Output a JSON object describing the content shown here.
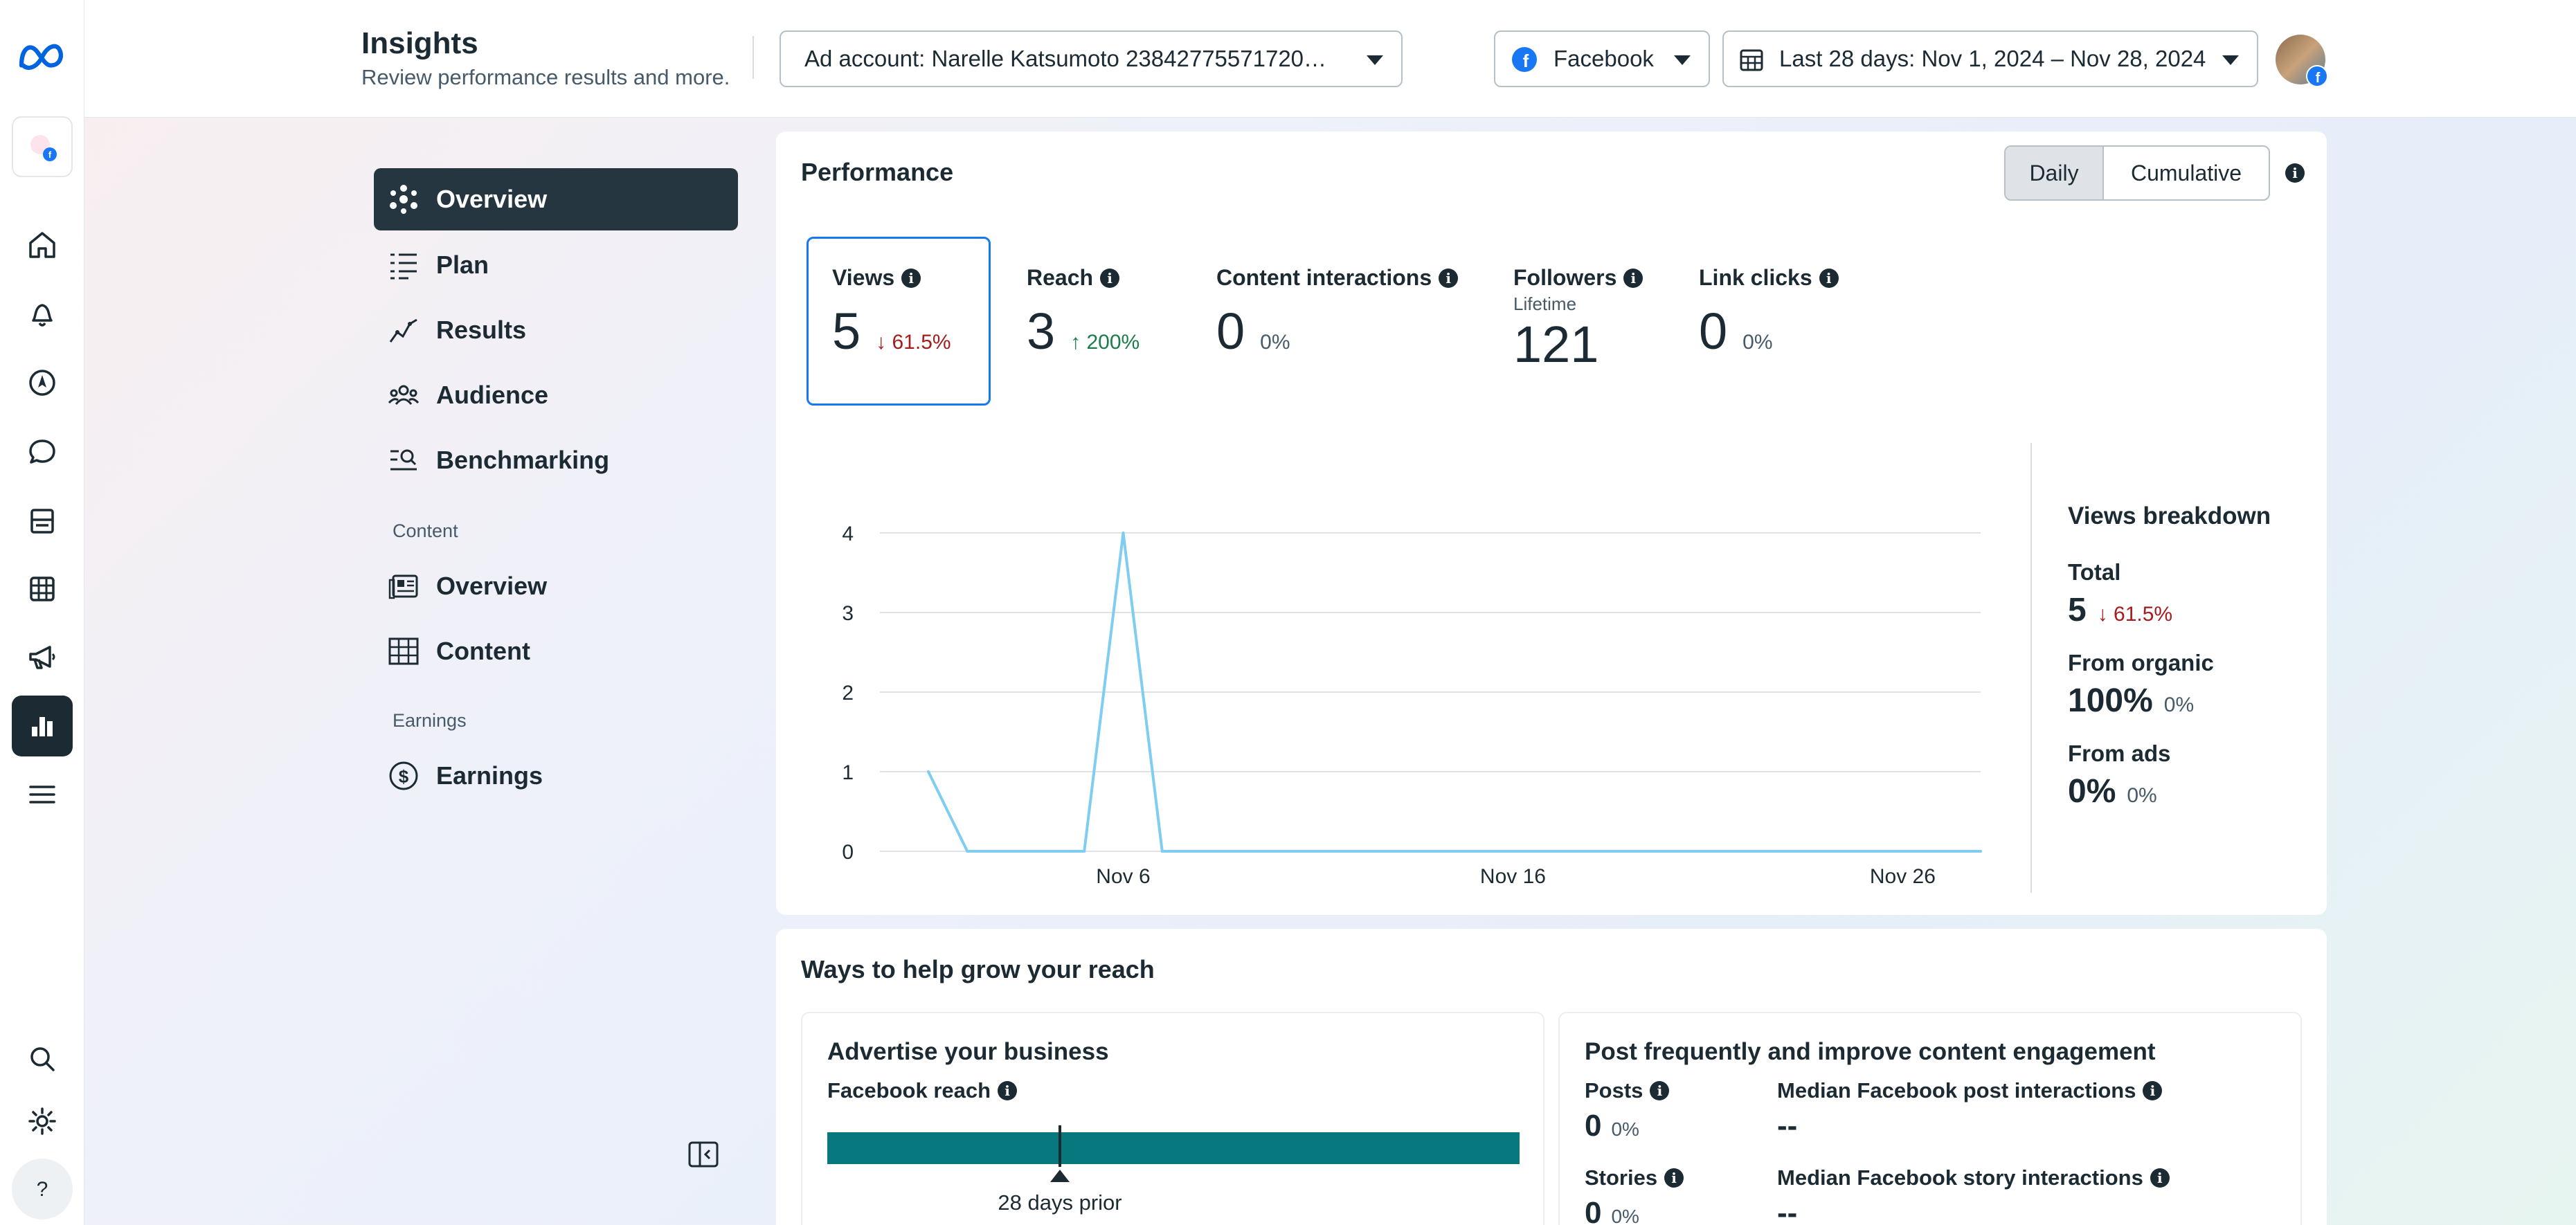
{
  "header": {
    "title": "Insights",
    "subtitle": "Review performance results and more.",
    "ad_account": "Ad account: Narelle Katsumoto 23842775571720…",
    "platform": "Facebook",
    "date_range": "Last 28 days: Nov 1, 2024 – Nov 28, 2024"
  },
  "rail_icons": [
    "meta-logo-icon",
    "page-avatar-icon",
    "home-icon",
    "bell-icon",
    "compass-icon",
    "chat-icon",
    "pages-icon",
    "table-icon",
    "megaphone-icon",
    "bar-chart-icon",
    "menu-icon",
    "search-icon",
    "gear-icon",
    "help-icon"
  ],
  "nav": {
    "items": [
      {
        "label": "Overview",
        "icon": "nodes-icon",
        "active": true
      },
      {
        "label": "Plan",
        "icon": "list-icon"
      },
      {
        "label": "Results",
        "icon": "trend-icon"
      },
      {
        "label": "Audience",
        "icon": "people-icon"
      },
      {
        "label": "Benchmarking",
        "icon": "magnify-lines-icon"
      }
    ],
    "content_heading": "Content",
    "content_items": [
      {
        "label": "Overview",
        "icon": "content-overview-icon"
      },
      {
        "label": "Content",
        "icon": "grid-icon"
      }
    ],
    "earnings_heading": "Earnings",
    "earnings_items": [
      {
        "label": "Earnings",
        "icon": "dollar-icon"
      }
    ]
  },
  "performance": {
    "title": "Performance",
    "toggle_daily": "Daily",
    "toggle_cumulative": "Cumulative",
    "metrics": [
      {
        "label": "Views",
        "value": "5",
        "delta": "61.5%",
        "direction": "down"
      },
      {
        "label": "Reach",
        "value": "3",
        "delta": "200%",
        "direction": "up"
      },
      {
        "label": "Content interactions",
        "value": "0",
        "delta": "0%"
      },
      {
        "label": "Followers",
        "sublabel": "Lifetime",
        "value": "121"
      },
      {
        "label": "Link clicks",
        "value": "0",
        "delta": "0%"
      }
    ],
    "breakdown": {
      "title": "Views breakdown",
      "total_label": "Total",
      "total_value": "5",
      "total_delta": "61.5%",
      "organic_label": "From organic",
      "organic_value": "100%",
      "organic_delta": "0%",
      "ads_label": "From ads",
      "ads_value": "0%",
      "ads_delta": "0%"
    }
  },
  "chart_data": {
    "type": "line",
    "x": [
      "Nov 1",
      "Nov 2",
      "Nov 3",
      "Nov 4",
      "Nov 5",
      "Nov 6",
      "Nov 7",
      "Nov 8",
      "Nov 9",
      "Nov 10",
      "Nov 11",
      "Nov 12",
      "Nov 13",
      "Nov 14",
      "Nov 15",
      "Nov 16",
      "Nov 17",
      "Nov 18",
      "Nov 19",
      "Nov 20",
      "Nov 21",
      "Nov 22",
      "Nov 23",
      "Nov 24",
      "Nov 25",
      "Nov 26",
      "Nov 27",
      "Nov 28"
    ],
    "x_tick_labels": [
      "Nov 6",
      "Nov 16",
      "Nov 26"
    ],
    "y_ticks": [
      0,
      1,
      2,
      3,
      4
    ],
    "ylim": [
      0,
      4
    ],
    "series": [
      {
        "name": "Views",
        "color": "#7fcdf0",
        "values": [
          1,
          0,
          0,
          0,
          0,
          4,
          0,
          0,
          0,
          0,
          0,
          0,
          0,
          0,
          0,
          0,
          0,
          0,
          0,
          0,
          0,
          0,
          0,
          0,
          0,
          0,
          0,
          0
        ]
      }
    ],
    "grid": true,
    "legend": "bottom"
  },
  "grow": {
    "title": "Ways to help grow your reach",
    "advertise": {
      "title": "Advertise your business",
      "reach_label": "Facebook reach",
      "marker_label": "28 days prior"
    },
    "post": {
      "title": "Post frequently and improve content engagement",
      "posts_label": "Posts",
      "posts_value": "0",
      "posts_delta": "0%",
      "median_post_label": "Median Facebook post interactions",
      "median_post_value": "--",
      "stories_label": "Stories",
      "stories_value": "0",
      "stories_delta": "0%",
      "median_story_label": "Median Facebook story interactions",
      "median_story_value": "--"
    }
  },
  "colors": {
    "accent_dark": "#1c2b33",
    "selected_border": "#1877f2",
    "bar_teal": "#07787d",
    "down": "#a41d1d",
    "up": "#1d7d4a",
    "line": "#7fcdf0"
  }
}
